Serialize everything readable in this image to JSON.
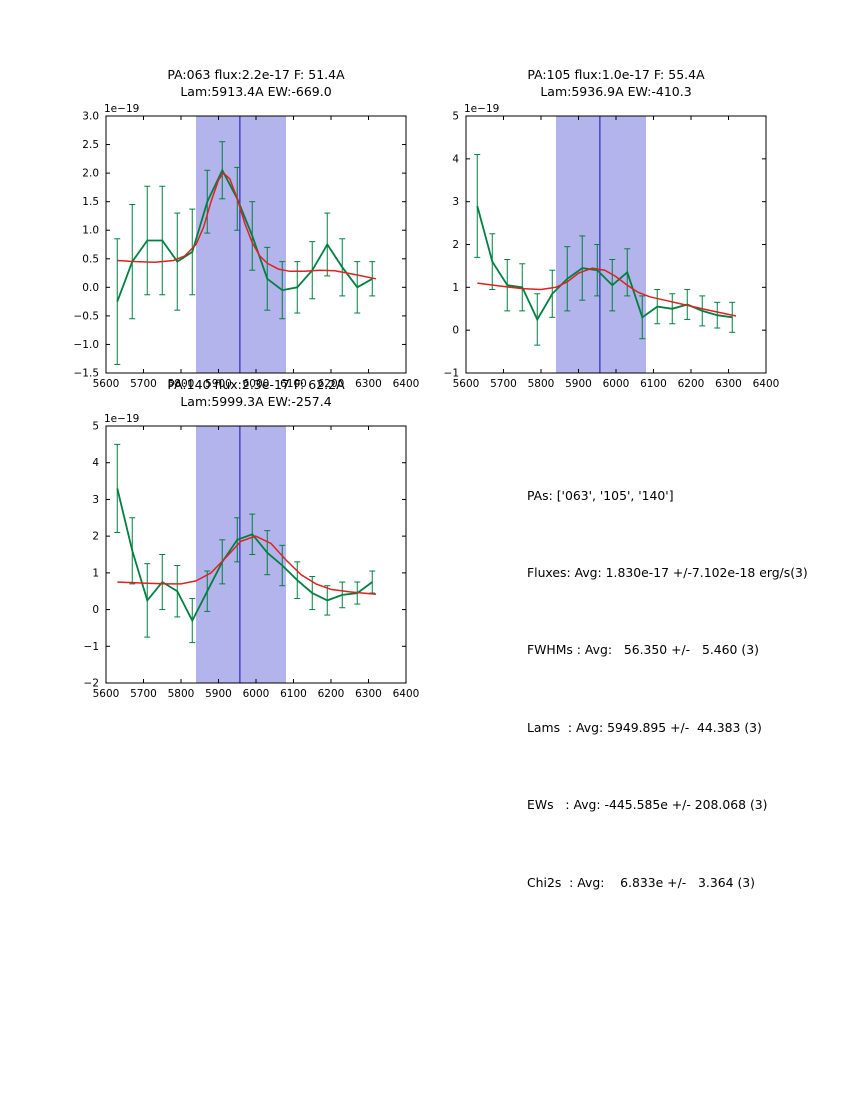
{
  "page": {
    "background": "#ffffff"
  },
  "colors": {
    "shade": "#b4b4ec",
    "vline": "#2a2ac0",
    "data": "#008040",
    "fit": "#dd2222"
  },
  "chart_data": [
    {
      "type": "line",
      "name": "pa063",
      "title_line1": "PA:063 flux:2.2e-17 F: 51.4A",
      "title_line2": "Lam:5913.4A EW:-669.0",
      "offset_label": "1e−19",
      "xlabel": "",
      "ylabel": "",
      "grid": "off",
      "legend": "off",
      "xlim": [
        5600,
        6400
      ],
      "ylim": [
        -1.5,
        3.0
      ],
      "xticks": [
        "5600",
        "5700",
        "5800",
        "5900",
        "6000",
        "6100",
        "6200",
        "6300",
        "6400"
      ],
      "yticks": [
        "−1.5",
        "−1.0",
        "−0.5",
        "0.0",
        "0.5",
        "1.0",
        "1.5",
        "2.0",
        "2.5",
        "3.0"
      ],
      "shade_region": [
        5840,
        6080
      ],
      "vline_x": 5957,
      "series": [
        {
          "name": "spectrum-with-errorbars",
          "x": [
            5630,
            5670,
            5710,
            5750,
            5790,
            5830,
            5870,
            5910,
            5950,
            5990,
            6030,
            6070,
            6110,
            6150,
            6190,
            6230,
            6270,
            6310
          ],
          "y": [
            -0.25,
            0.45,
            0.82,
            0.82,
            0.45,
            0.62,
            1.5,
            2.05,
            1.55,
            0.9,
            0.15,
            -0.05,
            0.0,
            0.3,
            0.75,
            0.35,
            0.0,
            0.15
          ],
          "yerr": [
            1.1,
            1.0,
            0.95,
            0.95,
            0.85,
            0.75,
            0.55,
            0.5,
            0.55,
            0.6,
            0.55,
            0.5,
            0.45,
            0.5,
            0.55,
            0.5,
            0.45,
            0.3
          ]
        },
        {
          "name": "gaussian-fit",
          "x": [
            5630,
            5680,
            5730,
            5780,
            5810,
            5840,
            5860,
            5880,
            5900,
            5913,
            5930,
            5950,
            5970,
            5990,
            6010,
            6030,
            6060,
            6090,
            6130,
            6170,
            6210,
            6260,
            6320
          ],
          "y": [
            0.47,
            0.45,
            0.44,
            0.47,
            0.55,
            0.75,
            1.05,
            1.5,
            1.88,
            2.0,
            1.9,
            1.55,
            1.12,
            0.78,
            0.55,
            0.42,
            0.32,
            0.28,
            0.28,
            0.3,
            0.29,
            0.23,
            0.15
          ]
        }
      ]
    },
    {
      "type": "line",
      "name": "pa105",
      "title_line1": "PA:105 flux:1.0e-17 F: 55.4A",
      "title_line2": "Lam:5936.9A EW:-410.3",
      "offset_label": "1e−19",
      "xlabel": "",
      "ylabel": "",
      "grid": "off",
      "legend": "off",
      "xlim": [
        5600,
        6400
      ],
      "ylim": [
        -1,
        5
      ],
      "xticks": [
        "5600",
        "5700",
        "5800",
        "5900",
        "6000",
        "6100",
        "6200",
        "6300",
        "6400"
      ],
      "yticks": [
        "−1",
        "0",
        "1",
        "2",
        "3",
        "4",
        "5"
      ],
      "shade_region": [
        5840,
        6080
      ],
      "vline_x": 5957,
      "series": [
        {
          "name": "spectrum-with-errorbars",
          "x": [
            5630,
            5670,
            5710,
            5750,
            5790,
            5830,
            5870,
            5910,
            5950,
            5990,
            6030,
            6070,
            6110,
            6150,
            6190,
            6230,
            6270,
            6310
          ],
          "y": [
            2.9,
            1.6,
            1.05,
            1.0,
            0.25,
            0.85,
            1.2,
            1.45,
            1.4,
            1.05,
            1.35,
            0.3,
            0.55,
            0.5,
            0.6,
            0.45,
            0.35,
            0.3
          ],
          "yerr": [
            1.2,
            0.65,
            0.6,
            0.55,
            0.6,
            0.55,
            0.75,
            0.75,
            0.6,
            0.6,
            0.55,
            0.5,
            0.4,
            0.35,
            0.35,
            0.35,
            0.3,
            0.35
          ]
        },
        {
          "name": "gaussian-fit",
          "x": [
            5630,
            5690,
            5750,
            5800,
            5840,
            5870,
            5900,
            5937,
            5970,
            6000,
            6030,
            6060,
            6090,
            6130,
            6180,
            6240,
            6320
          ],
          "y": [
            1.1,
            1.03,
            0.97,
            0.95,
            1.0,
            1.13,
            1.33,
            1.45,
            1.4,
            1.25,
            1.05,
            0.88,
            0.78,
            0.7,
            0.6,
            0.48,
            0.33
          ]
        }
      ]
    },
    {
      "type": "line",
      "name": "pa140",
      "title_line1": "PA:140 flux:2.3e-17 F: 62.2A",
      "title_line2": "Lam:5999.3A EW:-257.4",
      "offset_label": "1e−19",
      "xlabel": "",
      "ylabel": "",
      "grid": "off",
      "legend": "off",
      "xlim": [
        5600,
        6400
      ],
      "ylim": [
        -2,
        5
      ],
      "xticks": [
        "5600",
        "5700",
        "5800",
        "5900",
        "6000",
        "6100",
        "6200",
        "6300",
        "6400"
      ],
      "yticks": [
        "−2",
        "−1",
        "0",
        "1",
        "2",
        "3",
        "4",
        "5"
      ],
      "shade_region": [
        5840,
        6080
      ],
      "vline_x": 5957,
      "series": [
        {
          "name": "spectrum-with-errorbars",
          "x": [
            5630,
            5670,
            5710,
            5750,
            5790,
            5830,
            5870,
            5910,
            5950,
            5990,
            6030,
            6070,
            6110,
            6150,
            6190,
            6230,
            6270,
            6310
          ],
          "y": [
            3.3,
            1.6,
            0.25,
            0.75,
            0.5,
            -0.3,
            0.5,
            1.3,
            1.9,
            2.05,
            1.55,
            1.2,
            0.8,
            0.45,
            0.25,
            0.4,
            0.45,
            0.75
          ],
          "yerr": [
            1.2,
            0.9,
            1.0,
            0.75,
            0.7,
            0.6,
            0.55,
            0.6,
            0.6,
            0.55,
            0.6,
            0.55,
            0.5,
            0.45,
            0.4,
            0.35,
            0.3,
            0.3
          ]
        },
        {
          "name": "gaussian-fit",
          "x": [
            5630,
            5700,
            5760,
            5800,
            5840,
            5880,
            5920,
            5960,
            5999,
            6040,
            6080,
            6120,
            6160,
            6200,
            6250,
            6320
          ],
          "y": [
            0.75,
            0.72,
            0.7,
            0.7,
            0.78,
            1.0,
            1.42,
            1.86,
            2.0,
            1.8,
            1.35,
            0.95,
            0.7,
            0.55,
            0.48,
            0.42
          ]
        }
      ]
    }
  ],
  "stats_panel": {
    "lines": [
      "PAs: ['063', '105', '140']",
      "Fluxes: Avg: 1.830e-17 +/-7.102e-18 erg/s(3)",
      "FWHMs : Avg:   56.350 +/-   5.460 (3)",
      "Lams  : Avg: 5949.895 +/-  44.383 (3)",
      "EWs   : Avg: -445.585e +/- 208.068 (3)",
      "Chi2s  : Avg:    6.833e +/-   3.364 (3)"
    ]
  }
}
